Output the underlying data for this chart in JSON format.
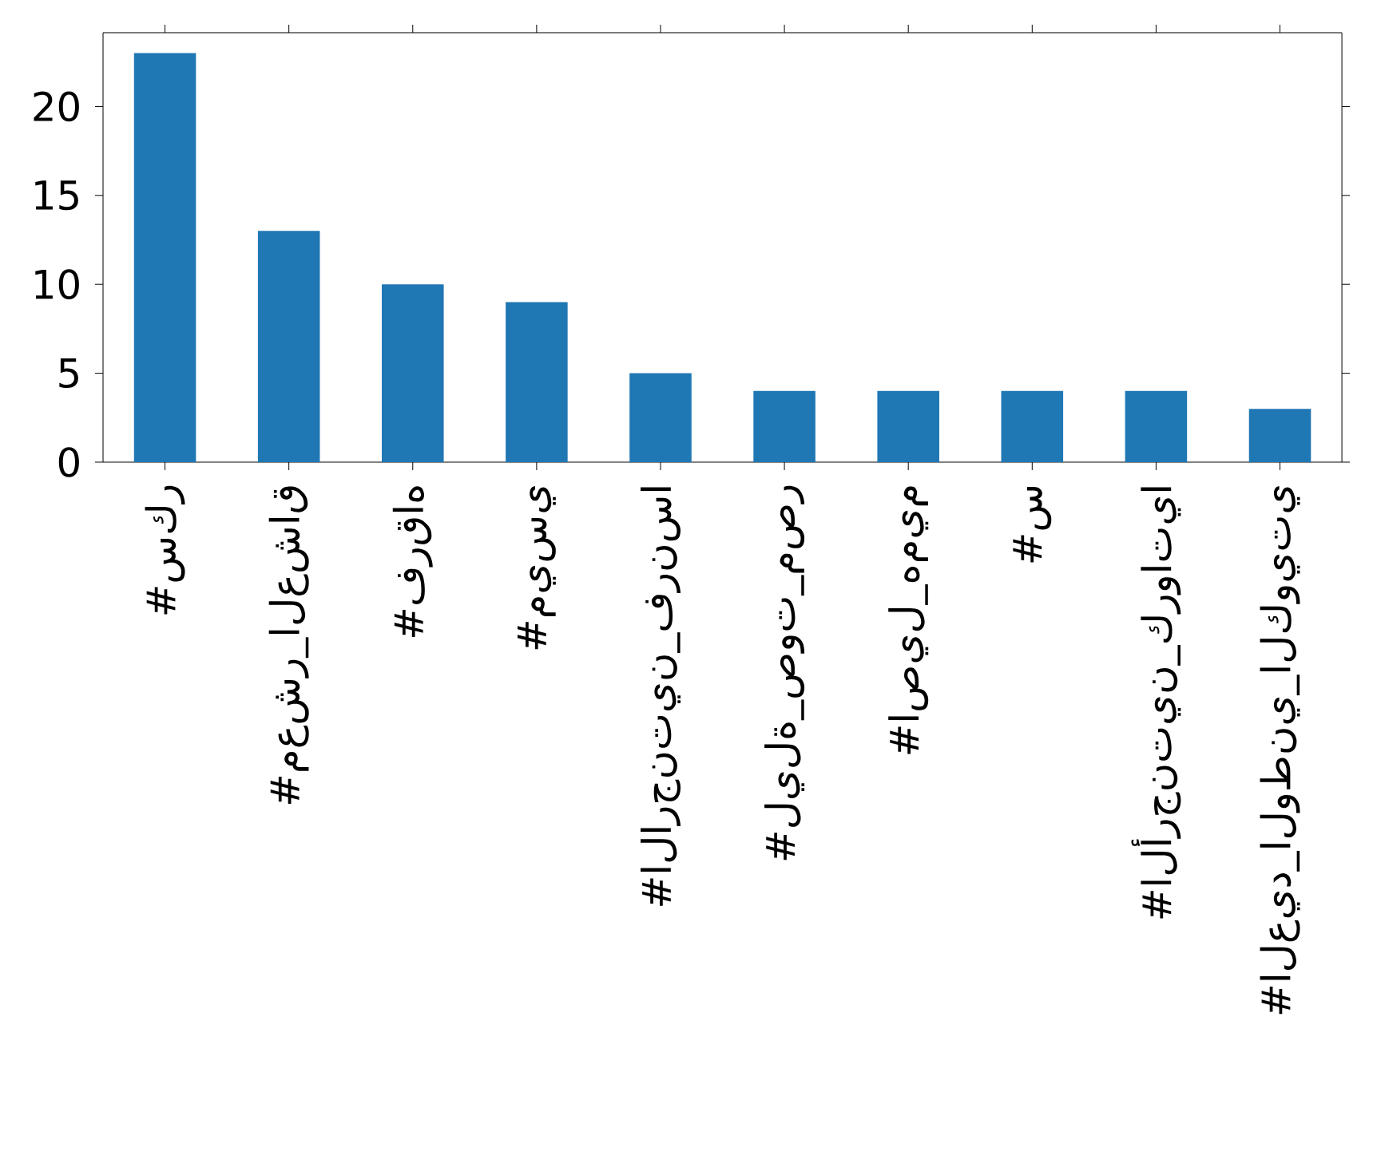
{
  "chart_data": {
    "type": "bar",
    "categories": [
      "#سكر",
      "#معشر_العشاق",
      "#فرقاه",
      "#ميسي",
      "#الارجنتين_فرنسا",
      "#ليلة_صوت_مصر",
      "#اصيل_هميم",
      "#س",
      "#الأرجنتين_كرواتيا",
      "#العيد_الوطني_الكويتي"
    ],
    "values": [
      23,
      13,
      10,
      9,
      5,
      4,
      4,
      4,
      4,
      3
    ],
    "color": "#1f77b4",
    "ylim": [
      0,
      24.15
    ],
    "yticks": [
      0,
      5,
      10,
      15,
      20
    ]
  }
}
